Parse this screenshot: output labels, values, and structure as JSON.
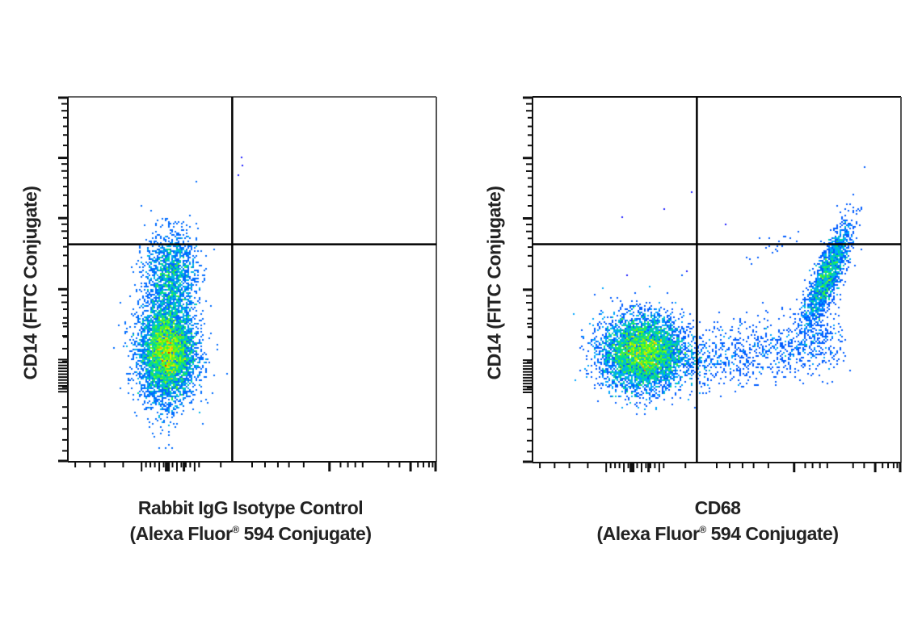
{
  "chart_data": [
    {
      "type": "scatter",
      "subtype": "flow-cytometry-density-dot-plot",
      "title": "",
      "xlabel": "Rabbit IgG Isotype Control (Alexa Fluor® 594 Conjugate)",
      "xlabel_lines": [
        "Rabbit IgG Isotype Control",
        "(Alexa Fluor",
        "®",
        " 594 Conjugate)"
      ],
      "ylabel": "CD14 (FITC Conjugate)",
      "x_scale": "log (biexponential)",
      "y_scale": "log (biexponential)",
      "tick_labels": "none shown",
      "grid": false,
      "quadrant_gate": {
        "x_frac": 0.446,
        "y_frac": 0.596
      },
      "populations": [
        {
          "name": "CD14-low cluster (lower-left)",
          "cx": 0.27,
          "cy": 0.3,
          "sx": 0.038,
          "sy": 0.065,
          "n": 5200,
          "peak_color": "#ff2a00"
        },
        {
          "name": "CD14-high cluster (upper-left)",
          "cx": 0.28,
          "cy": 0.51,
          "sx": 0.035,
          "sy": 0.06,
          "n": 1500,
          "peak_color": "#1a90ff"
        },
        {
          "name": "sparse tail (low CD14)",
          "cx": 0.27,
          "cy": 0.1,
          "sx": 0.02,
          "sy": 0.05,
          "n": 25,
          "peak_color": "#1010ff"
        }
      ],
      "quadrant_summary": {
        "upper_left": "CD14+ events",
        "upper_right": "~0",
        "lower_left": "majority",
        "lower_right": "~0"
      }
    },
    {
      "type": "scatter",
      "subtype": "flow-cytometry-density-dot-plot",
      "title": "",
      "xlabel": "CD68 (Alexa Fluor® 594 Conjugate)",
      "xlabel_lines": [
        "CD68",
        "(Alexa Fluor",
        "®",
        " 594 Conjugate)"
      ],
      "ylabel": "CD14 (FITC Conjugate)",
      "x_scale": "log (biexponential)",
      "y_scale": "log (biexponential)",
      "tick_labels": "none shown",
      "grid": false,
      "quadrant_gate": {
        "x_frac": 0.446,
        "y_frac": 0.597
      },
      "populations": [
        {
          "name": "CD68-/CD14- cluster (lower-left)",
          "cx": 0.3,
          "cy": 0.3,
          "sx": 0.055,
          "sy": 0.05,
          "n": 6500,
          "peak_color": "#ff2a00"
        },
        {
          "name": "CD68+/CD14+ cluster (upper-right)",
          "cx": 0.8,
          "cy": 0.51,
          "sx": 0.03,
          "sy": 0.07,
          "n": 1700,
          "peak_color": "#20e060"
        },
        {
          "name": "CD68+ bridge (lower-right)",
          "cx": 0.62,
          "cy": 0.29,
          "sx": 0.13,
          "sy": 0.04,
          "n": 900,
          "peak_color": "#1010ff"
        },
        {
          "name": "upper-middle scatter",
          "cx": 0.57,
          "cy": 0.56,
          "sx": 0.05,
          "sy": 0.03,
          "n": 20,
          "peak_color": "#1010ff"
        }
      ],
      "quadrant_summary": {
        "upper_left": "~0",
        "upper_right": "CD68+ CD14+",
        "lower_left": "majority",
        "lower_right": "CD68+ CD14-"
      }
    }
  ],
  "panels": [
    {
      "ylabel": "CD14 (FITC Conjugate)",
      "xlabel_line1": "Rabbit IgG Isotype Control",
      "xlabel_line2a": "(Alexa Fluor",
      "xlabel_reg": "®",
      "xlabel_line2b": " 594 Conjugate)"
    },
    {
      "ylabel": "CD14 (FITC Conjugate)",
      "xlabel_line1": "CD68",
      "xlabel_line2a": "(Alexa Fluor",
      "xlabel_reg": "®",
      "xlabel_line2b": " 594 Conjugate)"
    }
  ],
  "colors": {
    "axis": "#111111",
    "frame_top": "#666666",
    "density_low": "#0000ff",
    "density_mid": "#00e5ff",
    "density_mid2": "#33ff33",
    "density_high": "#ffee00",
    "density_peak": "#ff1a00"
  }
}
